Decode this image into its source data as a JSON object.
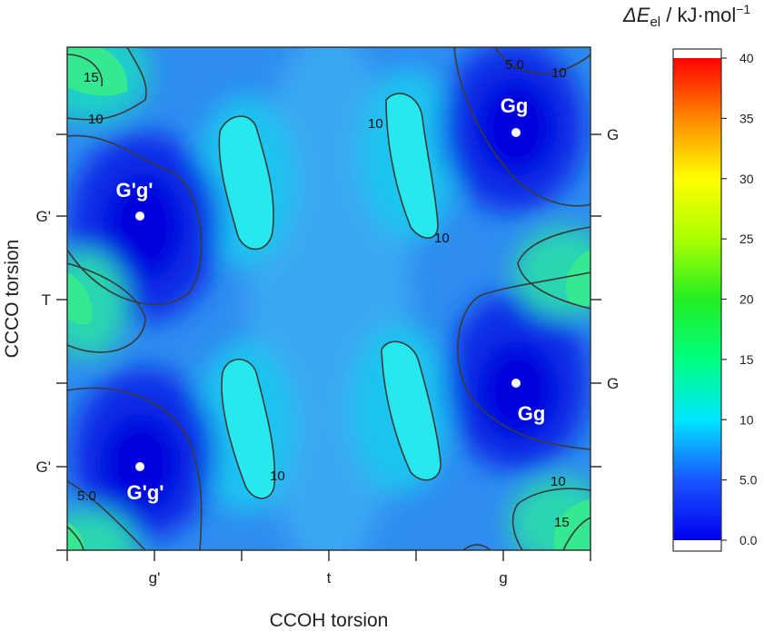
{
  "chart_data": {
    "type": "heatmap",
    "subtype": "filled-contour",
    "xlabel": "CCOH torsion",
    "ylabel": "CCCO torsion",
    "x_ticks": [
      "g'",
      "t",
      "g"
    ],
    "y_ticks_left": [
      "G'",
      "T",
      "G'"
    ],
    "y_ticks_right": [
      "G",
      "G"
    ],
    "colorbar": {
      "title_prefix": "ΔE",
      "title_sub": "el",
      "title_suffix": " / kJ·mol",
      "title_sup": "−1",
      "range": [
        0,
        40
      ],
      "ticks": [
        "40",
        "35",
        "30",
        "25",
        "20",
        "15",
        "10",
        "5.0",
        "0.0"
      ],
      "tick_values": [
        40,
        35,
        30,
        25,
        20,
        15,
        10,
        5,
        0
      ]
    },
    "contour_levels": [
      5,
      10,
      15
    ],
    "contour_labels": [
      "15",
      "10",
      "5.0",
      "10",
      "10",
      "10",
      "10",
      "10",
      "5.0",
      "10",
      "15"
    ],
    "minima": [
      {
        "label": "Gg",
        "ccoh": "g",
        "ccco": "G"
      },
      {
        "label": "G'g'",
        "ccoh": "g'",
        "ccco": "G'"
      },
      {
        "label": "Gg",
        "ccoh": "g",
        "ccco": "G"
      },
      {
        "label": "G'g'",
        "ccoh": "g'",
        "ccco": "G'"
      }
    ]
  }
}
